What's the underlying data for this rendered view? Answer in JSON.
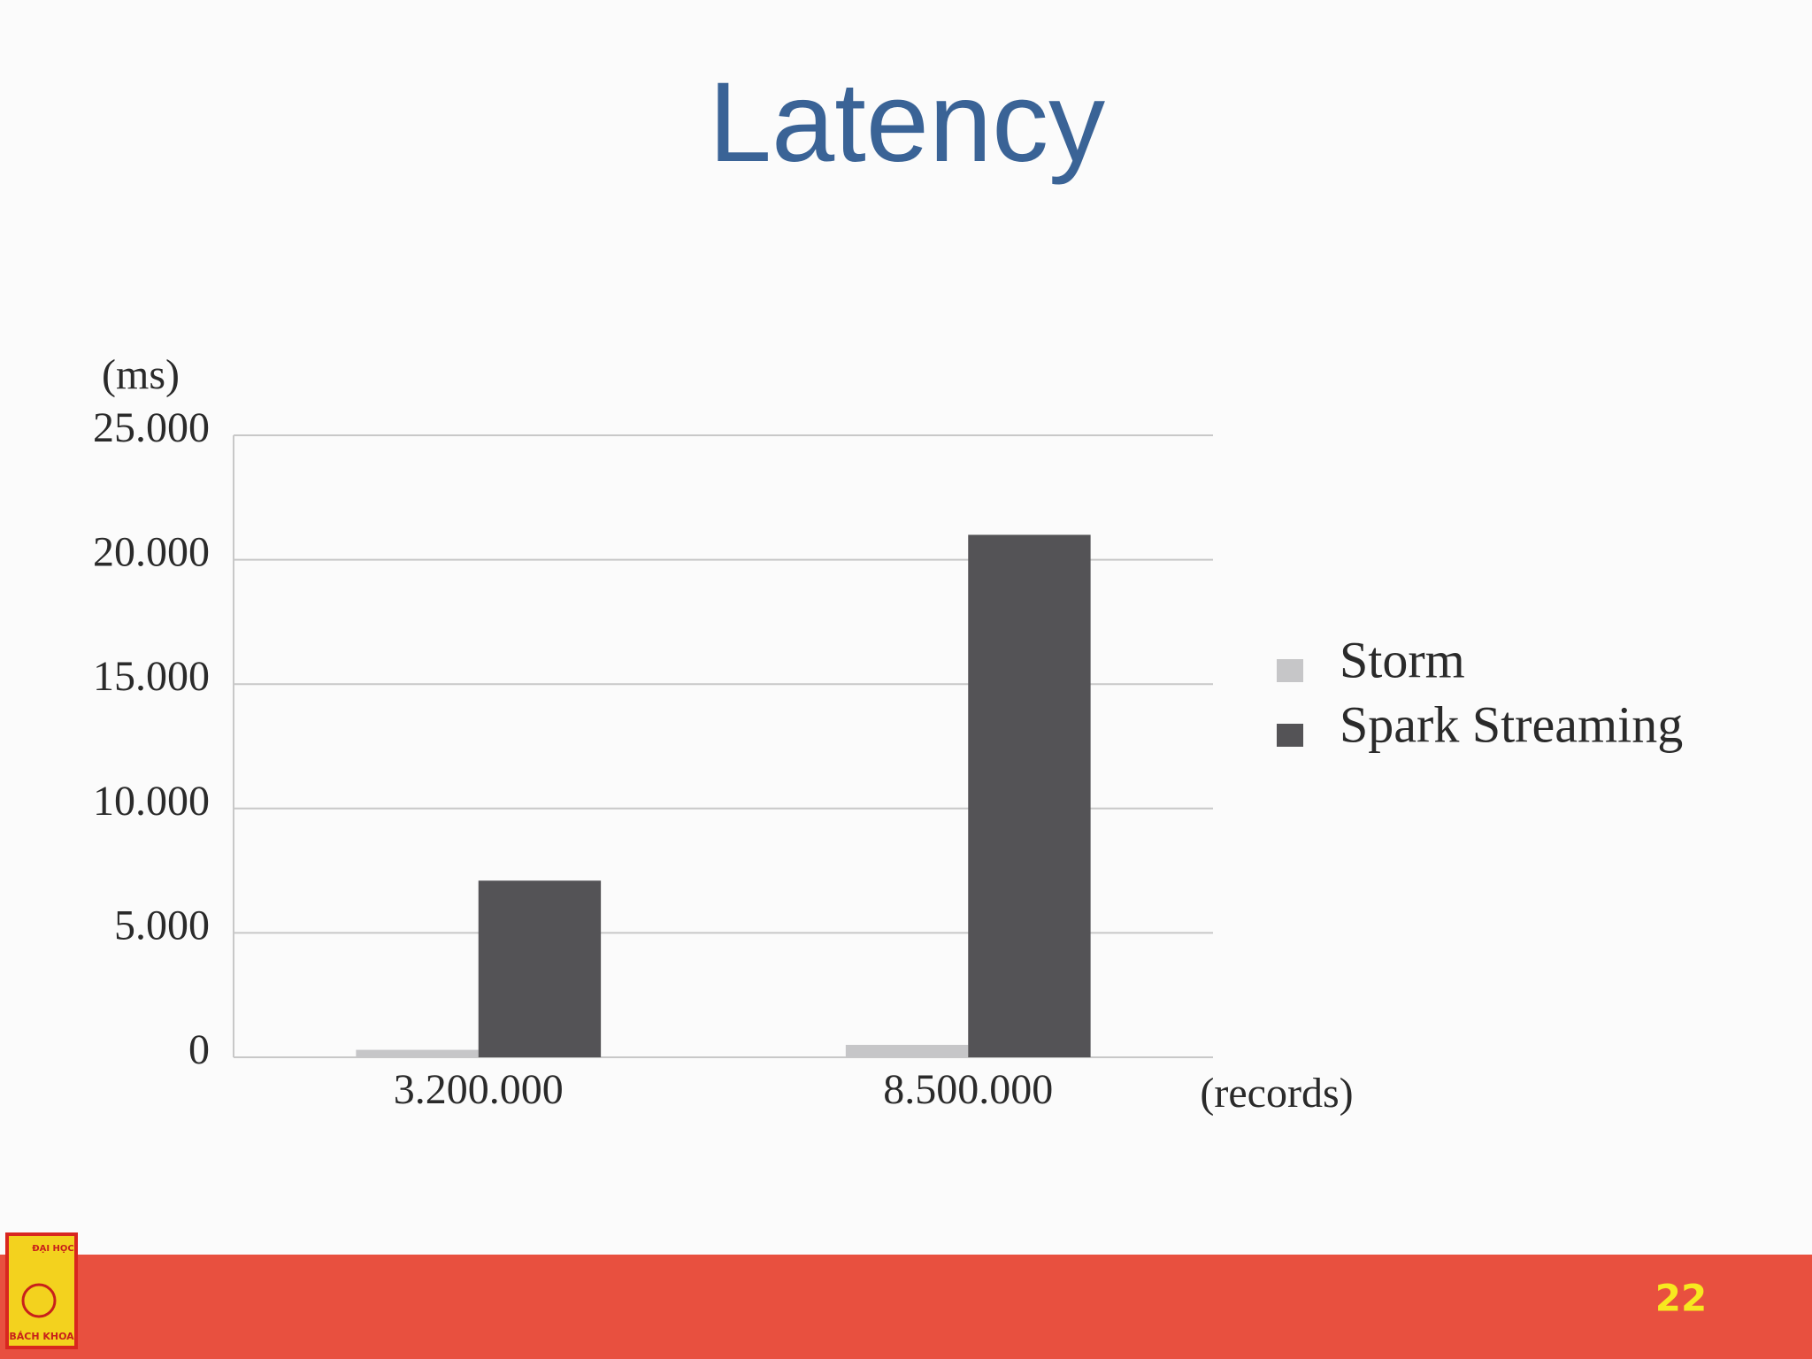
{
  "chart_data": {
    "type": "bar",
    "title": "Latency",
    "y_label": "(ms)",
    "x_label": "(records)",
    "categories": [
      "3.200.000",
      "8.500.000"
    ],
    "series": [
      {
        "name": "Storm",
        "color": "#c6c6c8",
        "values": [
          300,
          500
        ]
      },
      {
        "name": "Spark Streaming",
        "color": "#545356",
        "values": [
          7100,
          21000
        ]
      }
    ],
    "ylim": [
      0,
      25000
    ],
    "yticks": [
      {
        "value": 0,
        "label": "0"
      },
      {
        "value": 5000,
        "label": "5.000"
      },
      {
        "value": 10000,
        "label": "10.000"
      },
      {
        "value": 15000,
        "label": "15.000"
      },
      {
        "value": 20000,
        "label": "20.000"
      },
      {
        "value": 25000,
        "label": "25.000"
      }
    ],
    "grid": true,
    "legend": "right"
  },
  "logo": {
    "top": "ĐẠI HỌC",
    "bottom": "BÁCH KHOA"
  },
  "page_number": "22"
}
